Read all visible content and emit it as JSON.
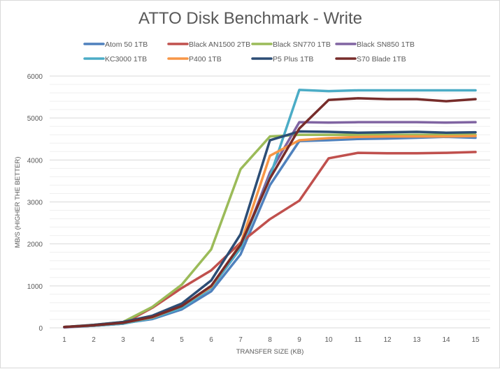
{
  "chart_data": {
    "type": "line",
    "title": "ATTO Disk Benchmark - Write",
    "xlabel": "TRANSFER SIZE (KB)",
    "ylabel": "MB/S (HIGHER THE BETTER)",
    "x": [
      "1",
      "2",
      "3",
      "4",
      "5",
      "6",
      "7",
      "8",
      "9",
      "10",
      "11",
      "12",
      "13",
      "14",
      "15"
    ],
    "ylim": [
      0,
      6000
    ],
    "yticks": [
      "0",
      "1000",
      "2000",
      "3000",
      "4000",
      "5000",
      "6000"
    ],
    "grid": true,
    "legend": "top",
    "series": [
      {
        "name": "Atom 50 1TB",
        "color": "#4f81bd",
        "values": [
          20,
          60,
          110,
          210,
          440,
          870,
          1750,
          3400,
          4450,
          4470,
          4500,
          4510,
          4530,
          4550,
          4530
        ]
      },
      {
        "name": "Black AN1500 2TB",
        "color": "#c0504d",
        "values": [
          20,
          50,
          100,
          480,
          950,
          1370,
          2030,
          2590,
          3030,
          4040,
          4170,
          4160,
          4160,
          4170,
          4190
        ]
      },
      {
        "name": "Black SN770 1TB",
        "color": "#9bbb59",
        "values": [
          20,
          70,
          140,
          500,
          1030,
          1870,
          3780,
          4560,
          4600,
          4600,
          4600,
          4600,
          4600,
          4600,
          4600
        ]
      },
      {
        "name": "Black SN850 1TB",
        "color": "#8064a2",
        "values": [
          10,
          50,
          100,
          250,
          500,
          950,
          1900,
          3700,
          4900,
          4890,
          4900,
          4900,
          4900,
          4890,
          4900
        ]
      },
      {
        "name": "KC3000 1TB",
        "color": "#4bacc6",
        "values": [
          20,
          50,
          100,
          230,
          480,
          950,
          1900,
          3600,
          5670,
          5640,
          5660,
          5660,
          5660,
          5660,
          5660
        ]
      },
      {
        "name": "P400 1TB",
        "color": "#f79646",
        "values": [
          20,
          60,
          120,
          250,
          520,
          980,
          2000,
          4100,
          4470,
          4520,
          4550,
          4560,
          4560,
          4560,
          4570
        ]
      },
      {
        "name": "P5 Plus 1TB",
        "color": "#2c4d75",
        "values": [
          20,
          70,
          140,
          290,
          580,
          1130,
          2230,
          4470,
          4680,
          4670,
          4650,
          4660,
          4670,
          4650,
          4660
        ]
      },
      {
        "name": "S70 Blade 1TB",
        "color": "#772c2a",
        "values": [
          20,
          60,
          120,
          260,
          520,
          1000,
          1980,
          3560,
          4750,
          5430,
          5470,
          5450,
          5450,
          5400,
          5450
        ]
      }
    ]
  }
}
